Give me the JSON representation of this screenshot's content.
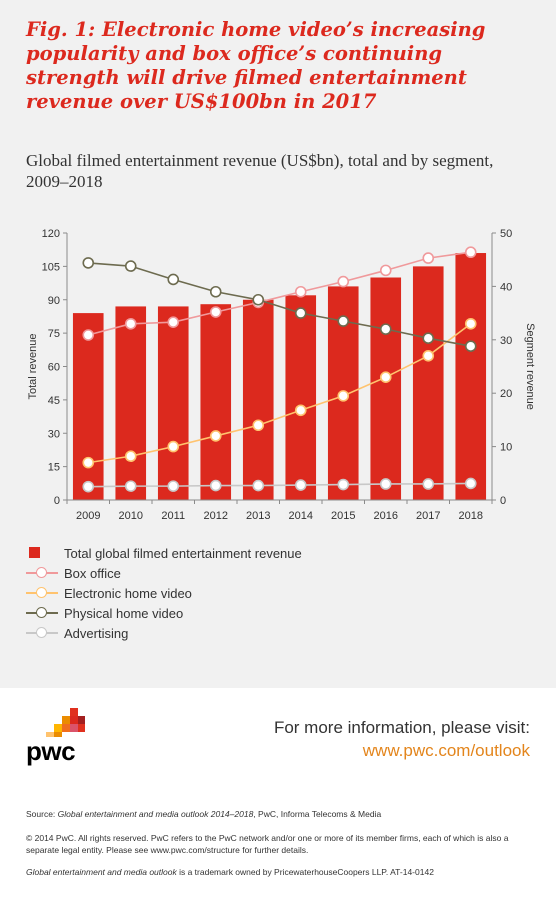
{
  "figure": {
    "title": "Fig. 1: Electronic home video’s increasing popularity and box office’s continuing strength will drive filmed entertainment revenue over US$100bn in 2017",
    "subtitle": "Global filmed entertainment revenue (US$bn), total and by segment, 2009–2018"
  },
  "legend": [
    {
      "label": "Total global filmed entertainment revenue",
      "color": "#dc291e"
    },
    {
      "label": "Box office",
      "color": "#f0999b"
    },
    {
      "label": "Electronic home video",
      "color": "#ffc36e"
    },
    {
      "label": "Physical home video",
      "color": "#6d6b4f"
    },
    {
      "label": "Advertising",
      "color": "#c8c8c8"
    }
  ],
  "chart_data": {
    "type": "bar",
    "categories": [
      "2009",
      "2010",
      "2011",
      "2012",
      "2013",
      "2014",
      "2015",
      "2016",
      "2017",
      "2018"
    ],
    "ylabel": "Total revenue",
    "y2label": "Segment revenue",
    "ylim": [
      0,
      120
    ],
    "y2lim": [
      0,
      50
    ],
    "yticks": [
      "0",
      "15",
      "30",
      "45",
      "60",
      "75",
      "90",
      "105",
      "120"
    ],
    "y2ticks": [
      "0",
      "10",
      "20",
      "30",
      "40",
      "50"
    ],
    "grid": false,
    "bar_series": {
      "name": "Total global filmed entertainment revenue",
      "color": "#dc291e",
      "values": [
        84,
        87,
        87,
        88,
        90,
        92,
        96,
        100,
        105,
        111
      ]
    },
    "line_series": [
      {
        "name": "Box office",
        "color": "#f0999b",
        "values": [
          30.9,
          33.0,
          33.3,
          35.2,
          37.0,
          39.0,
          40.9,
          43.0,
          45.3,
          46.4
        ]
      },
      {
        "name": "Electronic home video",
        "color": "#ffc36e",
        "values": [
          7.0,
          8.2,
          10.0,
          12.0,
          14.0,
          16.8,
          19.5,
          23.0,
          27.0,
          33.0
        ]
      },
      {
        "name": "Physical home video",
        "color": "#6d6b4f",
        "values": [
          44.4,
          43.8,
          41.3,
          39.0,
          37.5,
          35.0,
          33.5,
          32.0,
          30.3,
          28.8
        ]
      },
      {
        "name": "Advertising",
        "color": "#c8c8c8",
        "values": [
          2.5,
          2.6,
          2.6,
          2.7,
          2.7,
          2.8,
          2.9,
          3.0,
          3.0,
          3.1
        ]
      }
    ]
  },
  "footer": {
    "info_text": "For more information, please visit:",
    "info_link": "www.pwc.com/outlook",
    "logo_text": "pwc",
    "source_label": "Source: ",
    "source_title": "Global entertainment and media outlook 2014–2018",
    "source_rest": ", PwC, Informa Telecoms & Media",
    "copyright": "© 2014 PwC. All rights reserved. PwC refers to the PwC network and/or one or more of its member firms, each of which is also a separate legal entity. Please see www.pwc.com/structure for further details.",
    "trademark_title": "Global entertainment and media outlook",
    "trademark_rest": " is a trademark owned by PricewaterhouseCoopers LLP. AT-14-0142"
  }
}
